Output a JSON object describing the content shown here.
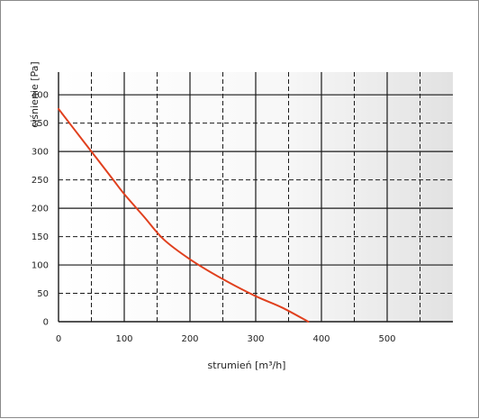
{
  "chart_data": {
    "type": "line",
    "xlabel": "strumień [m³/h]",
    "ylabel": "ciśnienie [Pa]",
    "xlim": [
      0,
      600
    ],
    "ylim": [
      0,
      440
    ],
    "x_ticks": [
      0,
      100,
      200,
      300,
      400,
      500
    ],
    "y_ticks": [
      0,
      50,
      100,
      150,
      200,
      250,
      300,
      350,
      400
    ],
    "grid": true,
    "background": "gradient light-gray, shaded at right",
    "colors": {
      "line": "#e0401e",
      "grid": "#1a1a1a",
      "plot_bg_left": "#ffffff",
      "plot_bg_right": "#e2e2e2"
    },
    "series": [
      {
        "x": [
          0,
          20,
          50,
          80,
          100,
          130,
          160,
          200,
          250,
          300,
          340,
          380
        ],
        "y": [
          375,
          345,
          300,
          255,
          225,
          185,
          145,
          110,
          75,
          45,
          25,
          0
        ]
      }
    ]
  }
}
